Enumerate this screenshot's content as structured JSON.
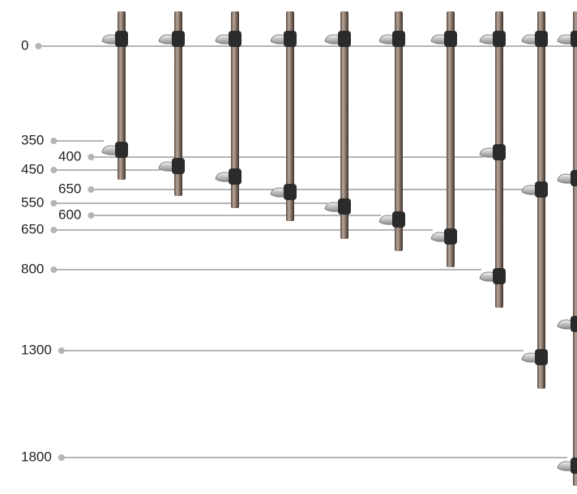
{
  "dimensions": [
    0,
    350,
    400,
    450,
    650,
    550,
    600,
    650,
    800,
    1300,
    1800
  ]
}
